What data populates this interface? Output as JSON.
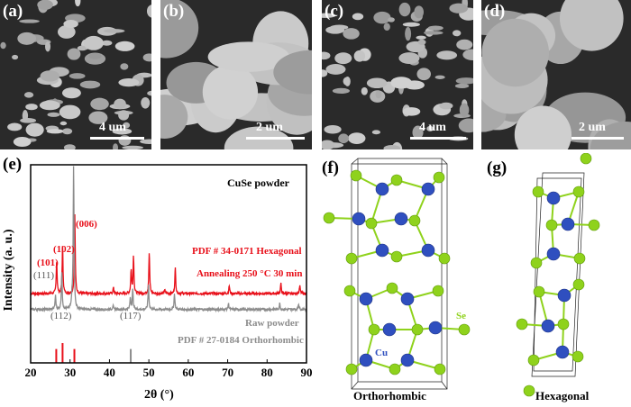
{
  "panels": {
    "a": {
      "label": "(a)",
      "scale": "4 um"
    },
    "b": {
      "label": "(b)",
      "scale": "2 um"
    },
    "c": {
      "label": "(c)",
      "scale": "4 um"
    },
    "d": {
      "label": "(d)",
      "scale": "2 um"
    },
    "e": {
      "label": "(e)"
    },
    "f": {
      "label": "(f)",
      "caption": "Orthorhombic",
      "atom_cu": "Cu",
      "atom_se": "Se"
    },
    "g": {
      "label": "(g)",
      "caption": "Hexagonal"
    }
  },
  "colors": {
    "red": "#e8101a",
    "gray": "#8c8c8c",
    "cu": "#2f4fbf",
    "se": "#8fd21c"
  },
  "chart_data": {
    "type": "line",
    "title": "CuSe powder",
    "xlabel": "2θ (°)",
    "ylabel": "Intensity (a. u.)",
    "xlim": [
      20,
      90
    ],
    "ylim": [
      0,
      1
    ],
    "xticks": [
      "20",
      "30",
      "40",
      "50",
      "60",
      "70",
      "80",
      "90"
    ],
    "annotations": {
      "hex_pdf": "PDF # 34-0171 Hexagonal",
      "annealed": "Annealing 250 °C 30 min",
      "raw": "Raw powder",
      "ortho_pdf": "PDF # 27-0184 Orthorhombic",
      "hkl_red": [
        "(101)",
        "(102)",
        "(006)"
      ],
      "hkl_gray": [
        "(111)",
        "(112)",
        "(117)"
      ]
    },
    "series": [
      {
        "name": "Annealing 250 °C 30 min",
        "color": "red",
        "baseline": 0.35,
        "peaks": [
          [
            26.6,
            0.17
          ],
          [
            28.1,
            0.24
          ],
          [
            31.2,
            0.4
          ],
          [
            41.0,
            0.03
          ],
          [
            45.5,
            0.12
          ],
          [
            46.1,
            0.19
          ],
          [
            50.1,
            0.21
          ],
          [
            54.0,
            0.02
          ],
          [
            56.7,
            0.13
          ],
          [
            70.4,
            0.04
          ],
          [
            83.5,
            0.05
          ],
          [
            88.3,
            0.04
          ]
        ]
      },
      {
        "name": "Raw powder",
        "color": "gray",
        "baseline": 0.27,
        "peaks": [
          [
            26.3,
            0.07
          ],
          [
            27.9,
            0.19
          ],
          [
            30.5,
            0.05
          ],
          [
            30.9,
            0.73
          ],
          [
            40.9,
            0.02
          ],
          [
            45.3,
            0.06
          ],
          [
            45.9,
            0.1
          ],
          [
            49.9,
            0.13
          ],
          [
            56.5,
            0.08
          ],
          [
            70.2,
            0.03
          ],
          [
            83.2,
            0.03
          ],
          [
            88.0,
            0.03
          ]
        ]
      }
    ],
    "reference_lines": [
      {
        "name": "PDF # 34-0171 Hexagonal",
        "color": "red",
        "lines": [
          [
            26.5,
            0.07
          ],
          [
            28.1,
            0.1
          ],
          [
            31.1,
            0.07
          ]
        ]
      },
      {
        "name": "PDF # 27-0184 Orthorhombic",
        "color": "gray",
        "lines": [
          [
            45.4,
            0.07
          ]
        ]
      }
    ]
  }
}
